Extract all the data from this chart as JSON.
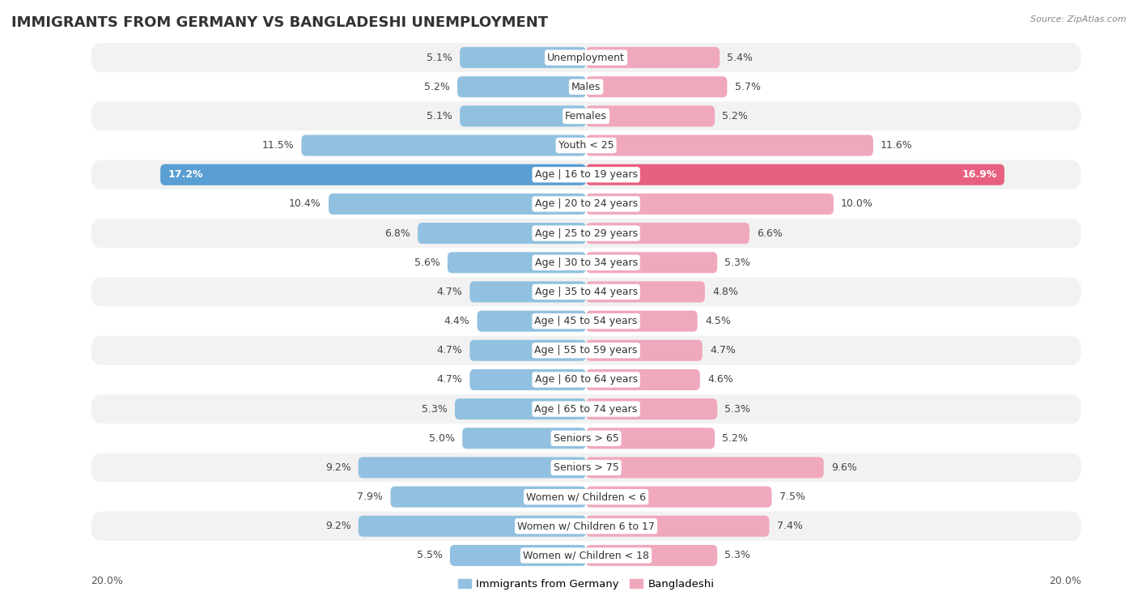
{
  "title": "IMMIGRANTS FROM GERMANY VS BANGLADESHI UNEMPLOYMENT",
  "source": "Source: ZipAtlas.com",
  "categories": [
    "Unemployment",
    "Males",
    "Females",
    "Youth < 25",
    "Age | 16 to 19 years",
    "Age | 20 to 24 years",
    "Age | 25 to 29 years",
    "Age | 30 to 34 years",
    "Age | 35 to 44 years",
    "Age | 45 to 54 years",
    "Age | 55 to 59 years",
    "Age | 60 to 64 years",
    "Age | 65 to 74 years",
    "Seniors > 65",
    "Seniors > 75",
    "Women w/ Children < 6",
    "Women w/ Children 6 to 17",
    "Women w/ Children < 18"
  ],
  "germany_values": [
    5.1,
    5.2,
    5.1,
    11.5,
    17.2,
    10.4,
    6.8,
    5.6,
    4.7,
    4.4,
    4.7,
    4.7,
    5.3,
    5.0,
    9.2,
    7.9,
    9.2,
    5.5
  ],
  "bangladesh_values": [
    5.4,
    5.7,
    5.2,
    11.6,
    16.9,
    10.0,
    6.6,
    5.3,
    4.8,
    4.5,
    4.7,
    4.6,
    5.3,
    5.2,
    9.6,
    7.5,
    7.4,
    5.3
  ],
  "germany_color": "#92c0e0",
  "bangladesh_color": "#f0a8bc",
  "germany_highlight_color": "#5a9fd4",
  "bangladesh_highlight_color": "#e86080",
  "highlight_row": 4,
  "xlim": 20.0,
  "bar_height": 0.72,
  "row_bg_even": "#f2f2f2",
  "row_bg_odd": "#ffffff",
  "title_fontsize": 13,
  "cat_fontsize": 9,
  "value_fontsize": 9,
  "legend_labels": [
    "Immigrants from Germany",
    "Bangladeshi"
  ]
}
